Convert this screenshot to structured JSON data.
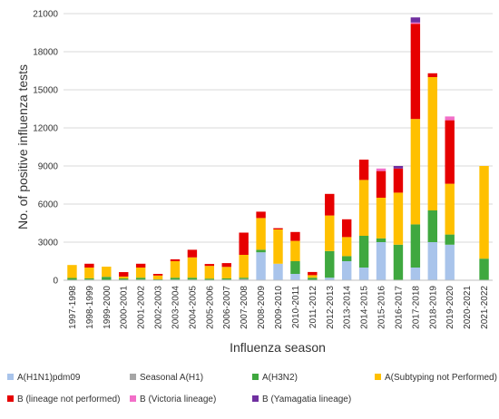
{
  "chart_data": {
    "type": "bar",
    "stacked": true,
    "title": "",
    "xlabel": "Influenza season",
    "ylabel": "No. of positive influenza tests",
    "ylim": [
      0,
      21000
    ],
    "yticks": [
      "0",
      "3000",
      "6000",
      "9000",
      "12000",
      "15000",
      "18000",
      "21000"
    ],
    "grid": "horizontal",
    "legend_position": "bottom",
    "categories": [
      "1997-1998",
      "1998-1999",
      "1999-2000",
      "2000-2001",
      "2001-2002",
      "2002-2003",
      "2003-2004",
      "2004-2005",
      "2005-2006",
      "2006-2007",
      "2007-2008",
      "2008-2009",
      "2009-2010",
      "2010-2011",
      "2011-2012",
      "2012-2013",
      "2013-2014",
      "2014-2015",
      "2015-2016",
      "2016-2017",
      "2017-2018",
      "2018-2019",
      "2019-2020",
      "2020-2021",
      "2021-2022"
    ],
    "series": [
      {
        "name": "A(H1N1)pdm09",
        "color": "#a9c4eb",
        "values": [
          0,
          0,
          0,
          0,
          0,
          0,
          0,
          0,
          0,
          0,
          0,
          2200,
          1300,
          500,
          0,
          200,
          1500,
          1000,
          3000,
          0,
          1000,
          3000,
          2800,
          0,
          0
        ]
      },
      {
        "name": "Seasonal A(H1)",
        "color": "#a6a6a6",
        "values": [
          30,
          50,
          20,
          40,
          50,
          20,
          50,
          50,
          30,
          50,
          100,
          0,
          0,
          0,
          0,
          0,
          0,
          0,
          0,
          0,
          0,
          0,
          0,
          0,
          0
        ]
      },
      {
        "name": "A(H3N2)",
        "color": "#3fa83f",
        "values": [
          150,
          100,
          250,
          100,
          150,
          50,
          150,
          150,
          100,
          100,
          100,
          200,
          0,
          1000,
          200,
          2100,
          400,
          2500,
          300,
          2800,
          3400,
          2500,
          800,
          0,
          1700
        ]
      },
      {
        "name": "A(Subtyping not Performed)",
        "color": "#ffc000",
        "values": [
          1020,
          850,
          800,
          150,
          800,
          300,
          1300,
          1600,
          1000,
          900,
          1800,
          2500,
          2700,
          1600,
          200,
          2800,
          1500,
          4400,
          3200,
          4100,
          8300,
          10500,
          4000,
          0,
          7300
        ]
      },
      {
        "name": "B (lineage not performed)",
        "color": "#e60000",
        "values": [
          0,
          300,
          0,
          350,
          300,
          130,
          150,
          600,
          150,
          300,
          1750,
          500,
          100,
          700,
          250,
          1700,
          1400,
          1600,
          2100,
          1900,
          7500,
          300,
          5000,
          0,
          0
        ]
      },
      {
        "name": "B (Victoria lineage)",
        "color": "#f26fc8",
        "values": [
          0,
          0,
          0,
          0,
          0,
          0,
          0,
          0,
          0,
          0,
          0,
          0,
          0,
          0,
          0,
          0,
          0,
          0,
          200,
          0,
          100,
          0,
          300,
          0,
          0
        ]
      },
      {
        "name": "B (Yamagatia lineage)",
        "color": "#7030a0",
        "values": [
          0,
          0,
          0,
          0,
          0,
          0,
          0,
          0,
          0,
          0,
          0,
          0,
          0,
          0,
          0,
          0,
          0,
          0,
          0,
          200,
          400,
          0,
          0,
          0,
          0
        ]
      }
    ]
  }
}
